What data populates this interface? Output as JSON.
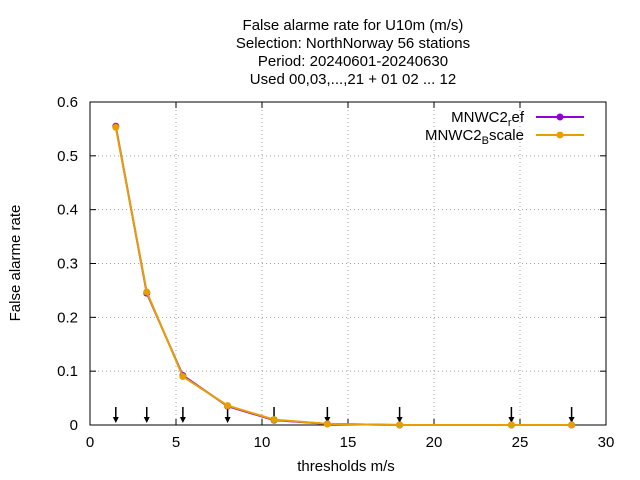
{
  "chart_data": {
    "type": "line",
    "title_lines": [
      "False alarme rate  for U10m (m/s)",
      "Selection: NorthNorway      56 stations",
      "Period: 20240601-20240630",
      "Used 00,03,...,21 + 01 02 ... 12"
    ],
    "xlabel": "thresholds m/s",
    "ylabel": "False alarme rate",
    "xlim": [
      0,
      30
    ],
    "ylim": [
      0,
      0.6
    ],
    "xticks": [
      0,
      5,
      10,
      15,
      20,
      25,
      30
    ],
    "yticks": [
      0,
      0.1,
      0.2,
      0.3,
      0.4,
      0.5,
      0.6
    ],
    "xtick_labels": [
      "0",
      "5",
      "10",
      "15",
      "20",
      "25",
      "30"
    ],
    "ytick_labels": [
      "0",
      "0.1",
      "0.2",
      "0.3",
      "0.4",
      "0.5",
      "0.6"
    ],
    "grid": true,
    "legend_position": "top-right",
    "series": [
      {
        "name": "MNWC2_ref",
        "label_main": "MNWC2",
        "label_sub": "r",
        "label_rest": "ef",
        "color": "#9400d3",
        "x": [
          1.5,
          3.3,
          5.4,
          8.0,
          10.7,
          13.8,
          18.0,
          24.5,
          28.0
        ],
        "y": [
          0.555,
          0.245,
          0.092,
          0.035,
          0.009,
          0.002,
          0.0,
          0.0,
          0.0
        ]
      },
      {
        "name": "MNWC2_Bscale",
        "label_main": "MNWC2",
        "label_sub": "B",
        "label_rest": "scale",
        "color": "#e69f00",
        "x": [
          1.5,
          3.3,
          5.4,
          8.0,
          10.7,
          13.8,
          18.0,
          24.5,
          28.0
        ],
        "y": [
          0.553,
          0.247,
          0.09,
          0.036,
          0.01,
          0.002,
          0.0,
          0.0,
          0.0
        ]
      }
    ],
    "arrow_markers_x": [
      1.5,
      3.3,
      5.4,
      8.0,
      10.7,
      13.8,
      18.0,
      24.5,
      28.0
    ]
  }
}
